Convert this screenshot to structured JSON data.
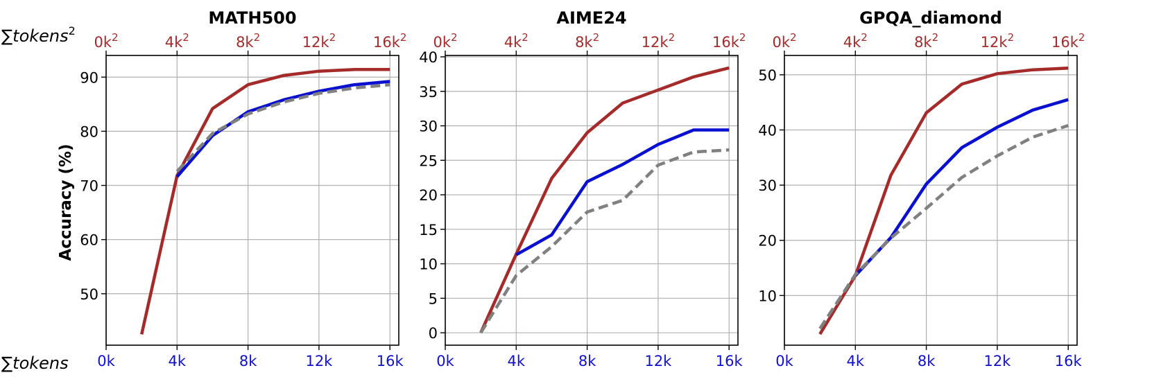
{
  "figure": {
    "ylabel": "Accuracy (%)",
    "top_axis_label": "∑tokens²",
    "bottom_axis_label": "∑tokens",
    "colors": {
      "red": "#a52a2a",
      "blue": "#0a10d0",
      "gray": "#808080",
      "top_tick": "#a52a2a",
      "bottom_tick": "#1010d0"
    }
  },
  "chart_data": [
    {
      "type": "line",
      "title": "MATH500",
      "xlim": [
        0,
        16.5
      ],
      "ylim": [
        40.5,
        94
      ],
      "yticks": [
        50,
        60,
        70,
        80,
        90
      ],
      "xticks": [
        0,
        4,
        8,
        12,
        16
      ],
      "xtick_labels": [
        "0k",
        "4k",
        "8k",
        "12k",
        "16k"
      ],
      "top_xtick_labels": [
        "0k²",
        "4k²",
        "8k²",
        "12k²",
        "16k²"
      ],
      "grid": true,
      "series": [
        {
          "color": "red",
          "style": "solid",
          "x": [
            2,
            4,
            6,
            8,
            10,
            12,
            14,
            16
          ],
          "y": [
            42.5,
            71.8,
            84.2,
            88.6,
            90.3,
            91.1,
            91.4,
            91.4
          ]
        },
        {
          "color": "blue",
          "style": "solid",
          "x": [
            4,
            6,
            8,
            10,
            12,
            14,
            16
          ],
          "y": [
            71.6,
            79.2,
            83.6,
            85.8,
            87.4,
            88.6,
            89.2
          ]
        },
        {
          "color": "gray",
          "style": "dashed",
          "x": [
            4,
            6,
            8,
            10,
            12,
            14,
            16
          ],
          "y": [
            72.6,
            79.6,
            83.2,
            85.4,
            87.0,
            88.0,
            88.6
          ]
        }
      ]
    },
    {
      "type": "line",
      "title": "AIME24",
      "xlim": [
        0,
        16.5
      ],
      "ylim": [
        -1.8,
        40.2
      ],
      "yticks": [
        0,
        5,
        10,
        15,
        20,
        25,
        30,
        35,
        40
      ],
      "xticks": [
        0,
        4,
        8,
        12,
        16
      ],
      "xtick_labels": [
        "0k",
        "4k",
        "8k",
        "12k",
        "16k"
      ],
      "top_xtick_labels": [
        "0k²",
        "4k²",
        "8k²",
        "12k²",
        "16k²"
      ],
      "grid": true,
      "series": [
        {
          "color": "red",
          "style": "solid",
          "x": [
            2,
            4,
            6,
            8,
            10,
            12,
            14,
            16
          ],
          "y": [
            0,
            11.4,
            22.4,
            29.0,
            33.3,
            35.2,
            37.1,
            38.4
          ]
        },
        {
          "color": "blue",
          "style": "solid",
          "x": [
            4,
            6,
            8,
            10,
            12,
            14,
            16
          ],
          "y": [
            11.3,
            14.2,
            21.9,
            24.4,
            27.3,
            29.4,
            29.4
          ]
        },
        {
          "color": "gray",
          "style": "dashed",
          "x": [
            2,
            4,
            6,
            8,
            10,
            12,
            14,
            16
          ],
          "y": [
            0,
            8.3,
            12.5,
            17.5,
            19.2,
            24.3,
            26.2,
            26.5
          ]
        }
      ]
    },
    {
      "type": "line",
      "title": "GPQA_diamond",
      "xlim": [
        0,
        16.5
      ],
      "ylim": [
        1,
        53.5
      ],
      "yticks": [
        10,
        20,
        30,
        40,
        50
      ],
      "xticks": [
        0,
        4,
        8,
        12,
        16
      ],
      "xtick_labels": [
        "0k",
        "4k",
        "8k",
        "12k",
        "16k"
      ],
      "top_xtick_labels": [
        "0k²",
        "4k²",
        "8k²",
        "12k²",
        "16k²"
      ],
      "grid": true,
      "series": [
        {
          "color": "red",
          "style": "solid",
          "x": [
            2,
            4,
            6,
            8,
            10,
            12,
            14,
            16
          ],
          "y": [
            3.0,
            13.6,
            31.8,
            43.1,
            48.3,
            50.2,
            50.9,
            51.2
          ]
        },
        {
          "color": "blue",
          "style": "solid",
          "x": [
            4,
            6,
            8,
            10,
            12,
            14,
            16
          ],
          "y": [
            13.6,
            20.5,
            30.2,
            36.8,
            40.5,
            43.6,
            45.5
          ]
        },
        {
          "color": "gray",
          "style": "dashed",
          "x": [
            2,
            4,
            6,
            8,
            10,
            12,
            14,
            16
          ],
          "y": [
            4.0,
            13.8,
            20.4,
            25.8,
            31.4,
            35.3,
            38.7,
            40.8
          ]
        }
      ]
    }
  ]
}
